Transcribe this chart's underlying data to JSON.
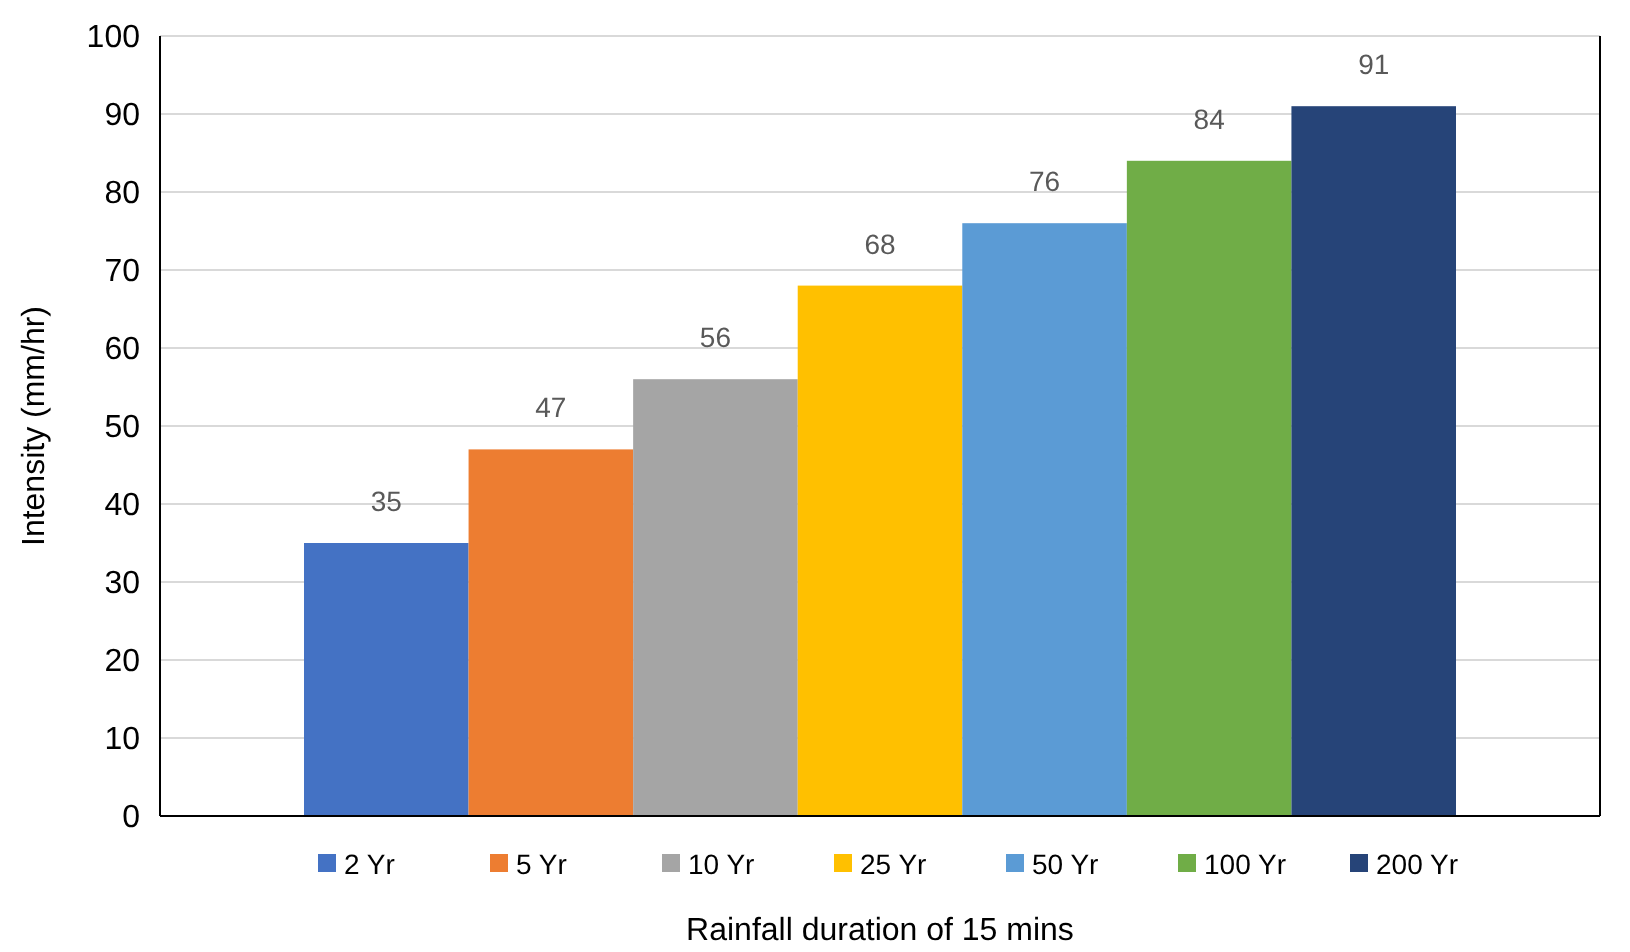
{
  "chart_data": {
    "type": "bar",
    "xlabel": "Rainfall duration of 15 mins",
    "ylabel": "Intensity (mm/hr)",
    "categories": [
      null
    ],
    "series": [
      {
        "name": "2 Yr",
        "color": "#4472c4",
        "values": [
          35
        ]
      },
      {
        "name": "5 Yr",
        "color": "#ed7d31",
        "values": [
          47
        ]
      },
      {
        "name": "10 Yr",
        "color": "#a5a5a5",
        "values": [
          56
        ]
      },
      {
        "name": "25 Yr",
        "color": "#ffc000",
        "values": [
          68
        ]
      },
      {
        "name": "50 Yr",
        "color": "#5b9bd5",
        "values": [
          76
        ]
      },
      {
        "name": "100 Yr",
        "color": "#70ad47",
        "values": [
          84
        ]
      },
      {
        "name": "200 Yr",
        "color": "#264478",
        "values": [
          91
        ]
      }
    ],
    "ylim": [
      0,
      100
    ],
    "yticks": [
      0,
      10,
      20,
      30,
      40,
      50,
      60,
      70,
      80,
      90,
      100
    ],
    "grid": "y",
    "legend": "bottom",
    "data_labels": true
  }
}
